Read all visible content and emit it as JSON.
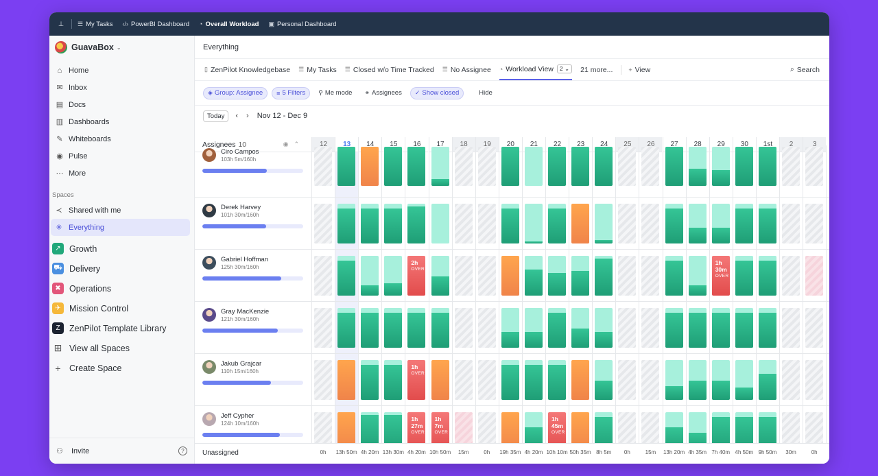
{
  "topbar": {
    "tabs": [
      {
        "label": "My Tasks",
        "icon": "list-icon",
        "active": false
      },
      {
        "label": "PowerBI Dashboard",
        "icon": "code-icon",
        "active": false
      },
      {
        "label": "Overall Workload",
        "icon": "gauge-icon",
        "active": true
      },
      {
        "label": "Personal Dashboard",
        "icon": "dashboard-icon",
        "active": false
      }
    ]
  },
  "sidebar": {
    "workspace": "GuavaBox",
    "nav": [
      {
        "label": "Home",
        "icon": "home-icon"
      },
      {
        "label": "Inbox",
        "icon": "inbox-icon"
      },
      {
        "label": "Docs",
        "icon": "docs-icon"
      },
      {
        "label": "Dashboards",
        "icon": "dashboards-icon"
      },
      {
        "label": "Whiteboards",
        "icon": "whiteboard-icon"
      },
      {
        "label": "Pulse",
        "icon": "pulse-icon"
      },
      {
        "label": "More",
        "icon": "more-icon"
      }
    ],
    "spaces_label": "Spaces",
    "shared_label": "Shared with me",
    "everything_label": "Everything",
    "spaces": [
      {
        "label": "Growth",
        "color": "#21a87a"
      },
      {
        "label": "Delivery",
        "color": "#4a8fe0"
      },
      {
        "label": "Operations",
        "color": "#e2567a"
      },
      {
        "label": "Mission Control",
        "color": "#f5b83a"
      },
      {
        "label": "ZenPilot Template Library",
        "color": "#1b2230"
      }
    ],
    "view_all": "View all Spaces",
    "create": "Create Space",
    "invite": "Invite"
  },
  "main": {
    "breadcrumb": "Everything",
    "views": [
      {
        "label": "ZenPilot Knowledgebase",
        "icon": "doc-icon"
      },
      {
        "label": "My Tasks",
        "icon": "list-lock-icon"
      },
      {
        "label": "Closed w/o Time Tracked",
        "icon": "list-icon"
      },
      {
        "label": "No Assignee",
        "icon": "list-icon"
      },
      {
        "label": "Workload View",
        "icon": "gauge-icon",
        "count": "2",
        "active": true
      },
      {
        "label": "21 more...",
        "icon": ""
      }
    ],
    "add_view": "View",
    "search": "Search",
    "filters": {
      "group": "Group: Assignee",
      "filters": "5 Filters",
      "me_mode": "Me mode",
      "assignees": "Assignees",
      "show_closed": "Show closed",
      "hide": "Hide"
    },
    "today_btn": "Today",
    "date_range": "Nov 12 - Dec 9"
  },
  "workload": {
    "assignees_label": "Assignees",
    "assignees_count": "10",
    "days": [
      "12",
      "13",
      "14",
      "15",
      "16",
      "17",
      "18",
      "19",
      "20",
      "21",
      "22",
      "23",
      "24",
      "25",
      "26",
      "27",
      "28",
      "29",
      "30",
      "1st",
      "2",
      "3"
    ],
    "weekend_idx": [
      0,
      6,
      7,
      13,
      14,
      20,
      21
    ],
    "today_idx": 1,
    "people": [
      {
        "name": "Ciro Campos",
        "hours": "103h 5m/160h",
        "progress": 0.64,
        "avatar": "#a0603c",
        "cells": [
          "h",
          1,
          "o",
          1,
          1,
          0.2,
          "h",
          "h",
          1,
          0,
          1,
          1,
          1,
          "h",
          "h",
          1,
          0.5,
          0.45,
          1,
          1,
          "h",
          "h"
        ]
      },
      {
        "name": "Derek Harvey",
        "hours": "101h 30m/160h",
        "progress": 0.63,
        "avatar": "#2f3a44",
        "cells": [
          "h",
          0.9,
          0.9,
          0.9,
          0.95,
          0,
          "h",
          "h",
          0.9,
          0.05,
          0.9,
          "o",
          0.1,
          "h",
          "h",
          0.9,
          0.45,
          0.45,
          0.9,
          0.9,
          "h",
          "h"
        ]
      },
      {
        "name": "Gabriel Hoffman",
        "hours": "125h 30m/160h",
        "progress": 0.78,
        "avatar": "#3c4d5c",
        "cells": [
          "h",
          0.9,
          0.3,
          0.35,
          {
            "r": "2h"
          },
          0.55,
          "h",
          "h",
          "o",
          0.75,
          0.65,
          0.7,
          0.95,
          "h",
          "h",
          0.9,
          0.3,
          {
            "r": "1h\n30m"
          },
          0.9,
          0.9,
          "h",
          "p"
        ]
      },
      {
        "name": "Gray MacKenzie",
        "hours": "121h 30m/160h",
        "progress": 0.75,
        "avatar": "#5a4a8a",
        "cells": [
          "h",
          0.9,
          0.9,
          0.9,
          0.9,
          0.9,
          "h",
          "h",
          0.45,
          0.45,
          0.9,
          0.55,
          0.45,
          "h",
          "h",
          0.9,
          0.9,
          0.9,
          0.9,
          0.9,
          "h",
          "h"
        ]
      },
      {
        "name": "Jakub Grajcar",
        "hours": "110h 15m/160h",
        "progress": 0.68,
        "avatar": "#7a8a6a",
        "cells": [
          "h",
          "o",
          0.9,
          0.9,
          {
            "r": "1h"
          },
          "o",
          "h",
          "h",
          0.9,
          0.9,
          0.9,
          "o",
          0.55,
          "h",
          "h",
          0.4,
          0.55,
          0.55,
          0.35,
          0.75,
          "h",
          "h"
        ]
      },
      {
        "name": "Jeff Cypher",
        "hours": "124h 10m/160h",
        "progress": 0.77,
        "avatar": "#b8a8b0",
        "cells": [
          "h",
          "o",
          0.95,
          0.95,
          {
            "r": "1h\n27m"
          },
          {
            "r": "1h\n7m"
          },
          "p",
          "h",
          "o",
          0.7,
          {
            "r": "1h\n45m"
          },
          "o",
          0.9,
          "h",
          "h",
          0.7,
          0.55,
          0.9,
          0.9,
          0.9,
          "h",
          "h"
        ]
      }
    ],
    "over_label": "OVER",
    "unassigned_label": "Unassigned",
    "unassigned": [
      "0h",
      "13h\n50m",
      "4h 20m",
      "13h\n30m",
      "4h 20m",
      "10h\n50m",
      "15m",
      "0h",
      "19h\n35m",
      "4h 20m",
      "10h\n10m",
      "50h\n35m",
      "8h 5m",
      "0h",
      "15m",
      "13h\n20m",
      "4h 35m",
      "7h 40m",
      "4h 50m",
      "9h 50m",
      "30m",
      "0h"
    ]
  }
}
